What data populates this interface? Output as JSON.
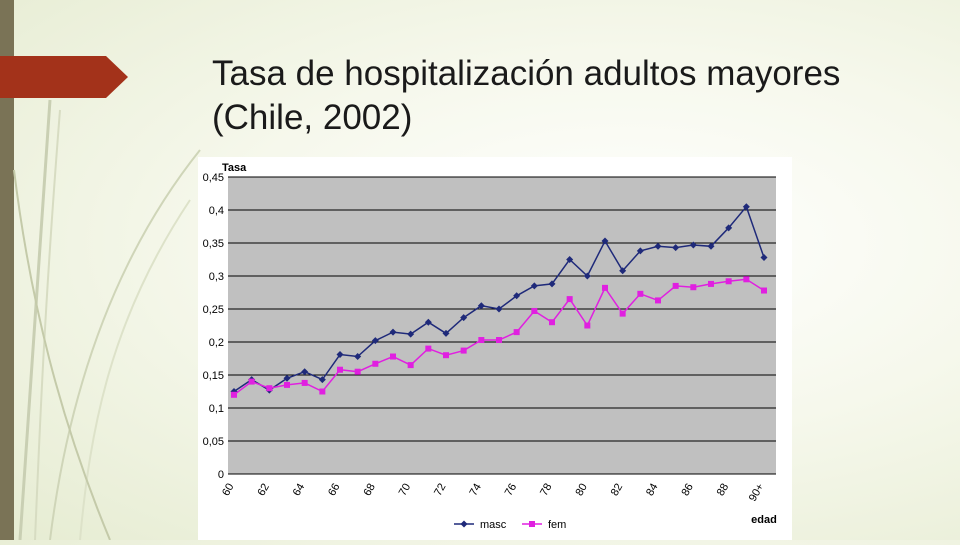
{
  "slide": {
    "title_line1": "Tasa de hospitalización adultos mayores",
    "title_line2": "(Chile, 2002)"
  },
  "colors": {
    "masc": "#1f2a7a",
    "fem": "#e020e0",
    "plot_bg": "#c0c0c0",
    "accent": "#a3321a"
  },
  "chart_data": {
    "type": "line",
    "ylabel": "Tasa",
    "xlabel": "edad",
    "ylim": [
      0,
      0.45
    ],
    "grid": true,
    "legend_position": "bottom",
    "y_ticks": [
      "0",
      "0,05",
      "0,1",
      "0,15",
      "0,2",
      "0,25",
      "0,3",
      "0,35",
      "0,4",
      "0,45"
    ],
    "x_tick_labels": [
      "60",
      "62",
      "64",
      "66",
      "68",
      "70",
      "72",
      "74",
      "76",
      "78",
      "80",
      "82",
      "84",
      "86",
      "88",
      "90+"
    ],
    "x": [
      "60",
      "61",
      "62",
      "63",
      "64",
      "65",
      "66",
      "67",
      "68",
      "69",
      "70",
      "71",
      "72",
      "73",
      "74",
      "75",
      "76",
      "77",
      "78",
      "79",
      "80",
      "81",
      "82",
      "83",
      "84",
      "85",
      "86",
      "87",
      "88",
      "89",
      "90+"
    ],
    "series": [
      {
        "name": "masc",
        "values": [
          0.125,
          0.143,
          0.127,
          0.145,
          0.155,
          0.143,
          0.181,
          0.178,
          0.202,
          0.215,
          0.212,
          0.23,
          0.213,
          0.237,
          0.255,
          0.25,
          0.27,
          0.285,
          0.288,
          0.325,
          0.3,
          0.353,
          0.308,
          0.338,
          0.345,
          0.343,
          0.347,
          0.345,
          0.373,
          0.405,
          0.328
        ]
      },
      {
        "name": "fem",
        "values": [
          0.12,
          0.14,
          0.13,
          0.135,
          0.138,
          0.125,
          0.158,
          0.155,
          0.167,
          0.178,
          0.165,
          0.19,
          0.18,
          0.187,
          0.203,
          0.203,
          0.215,
          0.247,
          0.23,
          0.265,
          0.225,
          0.282,
          0.243,
          0.273,
          0.263,
          0.285,
          0.283,
          0.288,
          0.292,
          0.295,
          0.278
        ]
      }
    ]
  }
}
